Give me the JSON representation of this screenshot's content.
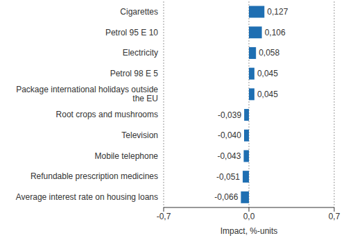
{
  "chart_data": {
    "type": "bar",
    "orientation": "horizontal",
    "x_label": "Impact, %-units",
    "categories": [
      "Cigarettes",
      "Petrol 95 E 10",
      "Electricity",
      "Petrol 98 E 5",
      "Package international holidays outside the EU",
      "Root crops and mushrooms",
      "Television",
      "Mobile telephone",
      "Refundable prescription medicines",
      "Average interest rate on housing loans"
    ],
    "values": [
      0.127,
      0.106,
      0.058,
      0.045,
      0.045,
      -0.039,
      -0.04,
      -0.043,
      -0.051,
      -0.066
    ],
    "value_labels": [
      "0,127",
      "0,106",
      "0,058",
      "0,045",
      "0,045",
      "-0,039",
      "-0,040",
      "-0,043",
      "-0,051",
      "-0,066"
    ],
    "data_labels": true,
    "color": "#1f6fb2",
    "xlim": [
      -0.7,
      0.7
    ],
    "xticks": [
      {
        "value": -0.7,
        "label": "-0,7"
      },
      {
        "value": 0,
        "label": "0,0"
      },
      {
        "value": 0.7,
        "label": "0,7"
      }
    ],
    "grid": true
  }
}
